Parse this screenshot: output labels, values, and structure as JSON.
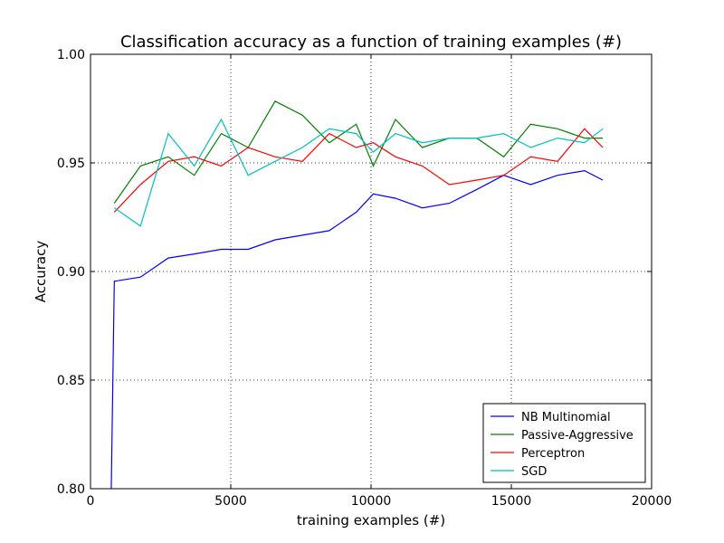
{
  "chart_data": {
    "type": "line",
    "title": "Classification accuracy as a function of training examples (#)",
    "xlabel": "training examples (#)",
    "ylabel": "Accuracy",
    "xlim": [
      0,
      20000
    ],
    "ylim": [
      0.8,
      1.0
    ],
    "xticks": [
      0,
      5000,
      10000,
      15000,
      20000
    ],
    "yticks": [
      0.8,
      0.85,
      0.9,
      0.95,
      1.0
    ],
    "xtick_labels": [
      "0",
      "5000",
      "10000",
      "15000",
      "20000"
    ],
    "ytick_labels": [
      "0.80",
      "0.85",
      "0.90",
      "0.95",
      "1.00"
    ],
    "grid": true,
    "legend_position": "lower-right",
    "series": [
      {
        "name": "NB Multinomial",
        "color": "#0000ff",
        "x": [
          730,
          850,
          1780,
          2770,
          3700,
          4660,
          5620,
          6580,
          7550,
          8510,
          9470,
          10080,
          10870,
          11830,
          12790,
          13770,
          14730,
          15690,
          16650,
          17610,
          18260
        ],
        "y": [
          0.7901,
          0.8955,
          0.8974,
          0.9062,
          0.9081,
          0.9102,
          0.9102,
          0.9146,
          0.9167,
          0.9188,
          0.9273,
          0.9357,
          0.9337,
          0.9293,
          0.9314,
          0.9378,
          0.9443,
          0.94,
          0.9443,
          0.9464,
          0.9421
        ]
      },
      {
        "name": "Passive-Aggressive",
        "color": "#008000",
        "x": [
          850,
          1780,
          2770,
          3700,
          4660,
          5620,
          6580,
          7550,
          8510,
          9470,
          10080,
          10870,
          11830,
          12790,
          13770,
          14730,
          15690,
          16650,
          17610,
          18260
        ],
        "y": [
          0.9314,
          0.9486,
          0.9528,
          0.9443,
          0.9635,
          0.9571,
          0.9784,
          0.972,
          0.9593,
          0.9678,
          0.9486,
          0.97,
          0.9571,
          0.9614,
          0.9614,
          0.9528,
          0.9678,
          0.9657,
          0.9614,
          0.9614
        ]
      },
      {
        "name": "Perceptron",
        "color": "#ff0000",
        "x": [
          850,
          1780,
          2770,
          3700,
          4660,
          5620,
          6580,
          7550,
          8510,
          9470,
          10080,
          10870,
          11830,
          12790,
          13770,
          14730,
          15690,
          16650,
          17610,
          18260
        ],
        "y": [
          0.9273,
          0.94,
          0.9507,
          0.9528,
          0.9486,
          0.9571,
          0.9528,
          0.9507,
          0.9635,
          0.9571,
          0.9593,
          0.9528,
          0.9486,
          0.94,
          0.9421,
          0.9443,
          0.9528,
          0.9507,
          0.9657,
          0.9571
        ]
      },
      {
        "name": "SGD",
        "color": "#00bfbf",
        "x": [
          850,
          1780,
          2770,
          3700,
          4660,
          5620,
          6580,
          7550,
          8510,
          9470,
          10080,
          10870,
          11830,
          12790,
          13770,
          14730,
          15690,
          16650,
          17610,
          18260
        ],
        "y": [
          0.9293,
          0.9209,
          0.9635,
          0.9486,
          0.97,
          0.9443,
          0.9507,
          0.9571,
          0.9657,
          0.9635,
          0.955,
          0.9635,
          0.9593,
          0.9614,
          0.9614,
          0.9635,
          0.9571,
          0.9614,
          0.9593,
          0.9657
        ]
      }
    ]
  }
}
